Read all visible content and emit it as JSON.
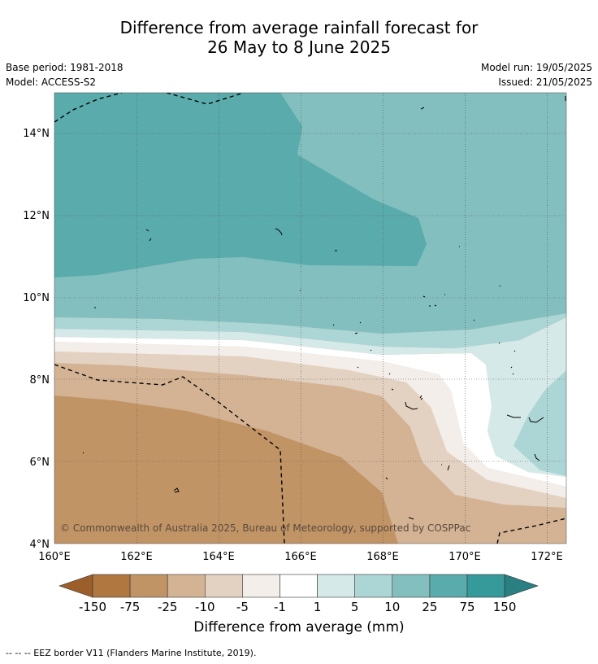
{
  "title_line1": "Difference from average rainfall forecast for",
  "title_line2": "26 May to 8 June 2025",
  "base_period": "Base period: 1981-2018",
  "model": "Model: ACCESS-S2",
  "model_run": "Model run: 19/05/2025",
  "issued": "Issued: 21/05/2025",
  "copyright": "© Commonwealth of Australia 2025, Bureau of Meteorology, supported by COSPPac",
  "lon_ticks": [
    "160°E",
    "162°E",
    "164°E",
    "166°E",
    "168°E",
    "170°E",
    "172°E"
  ],
  "lat_ticks": [
    "14°N",
    "12°N",
    "10°N",
    "8°N",
    "6°N",
    "4°N"
  ],
  "colorbar": {
    "title": "Difference from average (mm)",
    "labels": [
      "-150",
      "-75",
      "-25",
      "-10",
      "-5",
      "-1",
      "1",
      "5",
      "10",
      "25",
      "75",
      "150"
    ],
    "colors": [
      "#9c5f2c",
      "#b07840",
      "#c19466",
      "#d4b394",
      "#e3d2c2",
      "#f3eee9",
      "#ffffff",
      "#d5e9e8",
      "#acd6d5",
      "#84bfbf",
      "#5aabab",
      "#36999a",
      "#2a7f80"
    ]
  },
  "footer": "--  --  -- EEZ border V11 (Flanders Marine Institute, 2019)."
}
